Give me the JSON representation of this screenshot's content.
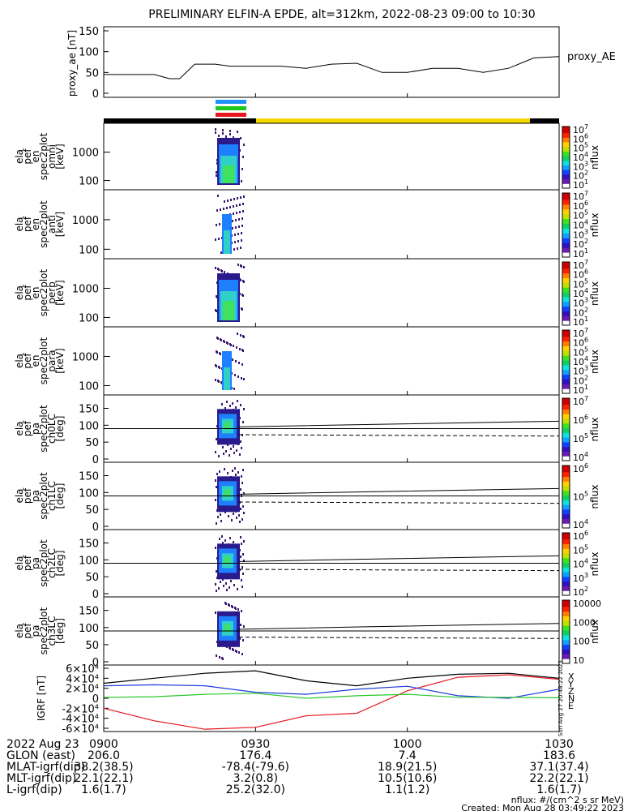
{
  "title": "PRELIMINARY ELFIN-A EPDE, alt=312km, 2022-08-23 09:00 to 10:30",
  "colors": {
    "bar_black": "#000000",
    "bar_yellow": "#f5d800",
    "sci_blue": "#1e90ff",
    "sci_green": "#1ec81e",
    "sci_red": "#e8161e",
    "bx": "#e8161e",
    "by": "#1e3cdc",
    "bz": "#28c828",
    "btot": "#000000"
  },
  "panels": [
    {
      "ylabel": [
        "proxy_ae",
        "[nT]"
      ],
      "legend": "proxy_AE",
      "yticks": [
        "0",
        "50",
        "100",
        "150"
      ]
    },
    {
      "ylabel": [
        "ela",
        "pef",
        "en",
        "spec2plot",
        "omni",
        "[keV]"
      ],
      "yticks": [
        "100",
        "1000"
      ],
      "cblabel": "nflux",
      "cbticks": [
        "10",
        "10",
        "10",
        "10",
        "10",
        "10",
        "10"
      ],
      "cbexp": [
        "1",
        "2",
        "3",
        "4",
        "5",
        "6",
        "7"
      ]
    },
    {
      "ylabel": [
        "ela",
        "pef",
        "en",
        "spec2plot",
        "anti",
        "[keV]"
      ],
      "yticks": [
        "100",
        "1000"
      ],
      "cblabel": "nflux",
      "cbticks": [
        "10",
        "10",
        "10",
        "10",
        "10",
        "10",
        "10"
      ],
      "cbexp": [
        "1",
        "2",
        "3",
        "4",
        "5",
        "6",
        "7"
      ]
    },
    {
      "ylabel": [
        "ela",
        "pef",
        "en",
        "spec2plot",
        "perp",
        "[keV]"
      ],
      "yticks": [
        "100",
        "1000"
      ],
      "cblabel": "nflux",
      "cbticks": [
        "10",
        "10",
        "10",
        "10",
        "10",
        "10",
        "10"
      ],
      "cbexp": [
        "1",
        "2",
        "3",
        "4",
        "5",
        "6",
        "7"
      ]
    },
    {
      "ylabel": [
        "ela",
        "pef",
        "en",
        "spec2plot",
        "para",
        "[keV]"
      ],
      "yticks": [
        "100",
        "1000"
      ],
      "cblabel": "nflux",
      "cbticks": [
        "10",
        "10",
        "10",
        "10",
        "10",
        "10",
        "10"
      ],
      "cbexp": [
        "1",
        "2",
        "3",
        "4",
        "5",
        "6",
        "7"
      ]
    },
    {
      "ylabel": [
        "ela",
        "pef",
        "pa",
        "spec2plot",
        "ch0LC",
        "[deg]"
      ],
      "yticks": [
        "0",
        "50",
        "100",
        "150"
      ],
      "cblabel": "nflux",
      "cbticks": [
        "10",
        "10",
        "10",
        "10"
      ],
      "cbexp": [
        "4",
        "5",
        "6",
        "7"
      ]
    },
    {
      "ylabel": [
        "ela",
        "pef",
        "pa",
        "spec2plot",
        "ch1LC",
        "[deg]"
      ],
      "yticks": [
        "0",
        "50",
        "100",
        "150"
      ],
      "cblabel": "nflux",
      "cbticks": [
        "10",
        "10",
        "10"
      ],
      "cbexp": [
        "4",
        "5",
        "6"
      ]
    },
    {
      "ylabel": [
        "ela",
        "pef",
        "pa",
        "spec2plot",
        "ch2LC",
        "[deg]"
      ],
      "yticks": [
        "0",
        "50",
        "100",
        "150"
      ],
      "cblabel": "nflux",
      "cbticks": [
        "10",
        "10",
        "10",
        "10",
        "10"
      ],
      "cbexp": [
        "2",
        "3",
        "4",
        "5",
        "6"
      ]
    },
    {
      "ylabel": [
        "ela",
        "pef",
        "pa",
        "spec2plot",
        "ch3LC",
        "[deg]"
      ],
      "yticks": [
        "0",
        "50",
        "100",
        "150"
      ],
      "cblabel": "nflux",
      "cbticks": [
        "10",
        "100",
        "1000",
        "10000"
      ],
      "cbexp": [
        "",
        "",
        "",
        ""
      ]
    },
    {
      "ylabel": [
        "IGRF",
        "[nT]"
      ],
      "yticks": [
        "-6×10⁴",
        "-4×10⁴",
        "-2×10⁴",
        "0",
        "2×10⁴",
        "4×10⁴",
        "6×10⁴"
      ],
      "legend_letters": [
        "X",
        "Y",
        "Z",
        "N",
        "E"
      ],
      "sidenote": "Sun Aug 27 20:48:22 2023"
    }
  ],
  "footer": {
    "xlabel_row": [
      "2022 Aug 23",
      "0900",
      "0930",
      "1000",
      "1030"
    ],
    "rows": [
      {
        "label": "GLON (east)",
        "values": [
          "206.0",
          "176.4",
          "7.4",
          "183.6"
        ]
      },
      {
        "label": "MLAT-igrf(dip)",
        "values": [
          "38.2(38.5)",
          "-78.4(-79.6)",
          "18.9(21.5)",
          "37.1(37.4)"
        ]
      },
      {
        "label": "MLT-igrf(dip)",
        "values": [
          "22.1(22.1)",
          "3.2(0.8)",
          "10.5(10.6)",
          "22.2(22.1)"
        ]
      },
      {
        "label": "L-igrf(dip)",
        "values": [
          "1.6(1.7)",
          "25.2(32.0)",
          "1.1(1.2)",
          "1.6(1.7)"
        ]
      }
    ],
    "units": "nflux: #/(cm^2 s sr MeV)",
    "created": "Created: Mon Aug 28 03:49:22 2023"
  },
  "chart_data": [
    {
      "type": "line",
      "name": "proxy_AE",
      "x_minutes": [
        0,
        5,
        10,
        13,
        15,
        18,
        20,
        22,
        25,
        30,
        35,
        40,
        45,
        50,
        55,
        60,
        65,
        70,
        75,
        80,
        85,
        90
      ],
      "values": [
        45,
        45,
        45,
        35,
        35,
        70,
        70,
        70,
        65,
        65,
        65,
        60,
        70,
        72,
        50,
        50,
        60,
        60,
        50,
        60,
        85,
        88
      ],
      "ylim": [
        0,
        150
      ],
      "xlim": [
        "09:00",
        "10:30"
      ]
    },
    {
      "type": "line",
      "name": "IGRF components",
      "x_minutes": [
        0,
        10,
        20,
        30,
        40,
        50,
        60,
        70,
        80,
        90
      ],
      "series": [
        {
          "name": "X",
          "values": [
            -20000,
            -45000,
            -62000,
            -58000,
            -35000,
            -30000,
            15000,
            42000,
            47000,
            38000
          ]
        },
        {
          "name": "Y",
          "values": [
            25000,
            27000,
            25000,
            12000,
            8000,
            18000,
            24000,
            5000,
            0,
            18000
          ]
        },
        {
          "name": "Z",
          "values": [
            2000,
            3000,
            8000,
            10000,
            0,
            5000,
            8000,
            2000,
            2000,
            1000
          ]
        },
        {
          "name": "N",
          "values": [
            30000,
            40000,
            50000,
            55000,
            35000,
            25000,
            40000,
            48000,
            50000,
            40000
          ]
        }
      ],
      "ylim": [
        -60000,
        60000
      ]
    }
  ]
}
